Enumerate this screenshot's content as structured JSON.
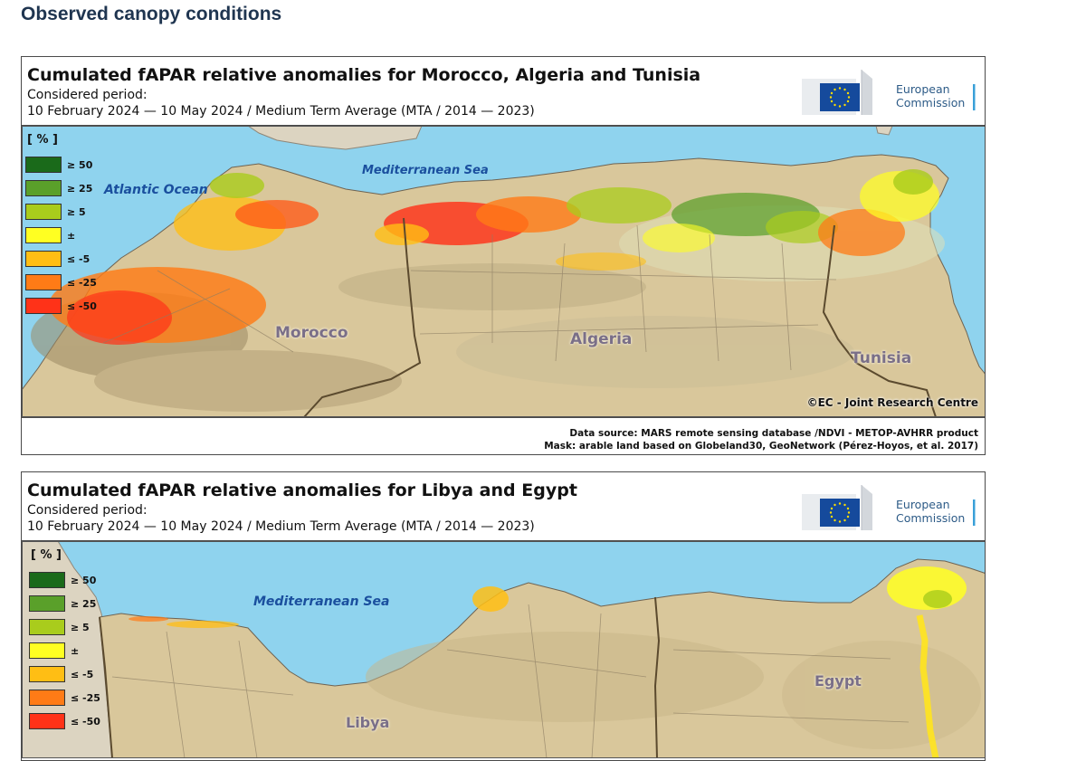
{
  "page": {
    "heading": "Observed canopy conditions"
  },
  "logo": {
    "line1": "European",
    "line2": "Commission"
  },
  "legend": {
    "unit": "[ % ]",
    "classes": [
      {
        "label": "≥ 50",
        "color": "#1a6a1a"
      },
      {
        "label": "≥ 25",
        "color": "#5aa02a"
      },
      {
        "label": "≥ 5",
        "color": "#a9cc1c"
      },
      {
        "label": "±",
        "color": "#ffff22"
      },
      {
        "label": "≤ -5",
        "color": "#ffbe14"
      },
      {
        "label": "≤ -25",
        "color": "#ff7b16"
      },
      {
        "label": "≤ -50",
        "color": "#ff3218"
      }
    ]
  },
  "maps": [
    {
      "title": "Cumulated fAPAR relative anomalies for Morocco, Algeria and Tunisia",
      "period_label": "Considered period:",
      "period": "10 February 2024 — 10 May 2024 / Medium Term Average (MTA / 2014 — 2023)",
      "labels": {
        "atlantic": "Atlantic Ocean",
        "mediterranean": "Mediterranean Sea",
        "morocco": "Morocco",
        "algeria": "Algeria",
        "tunisia": "Tunisia",
        "copyright": "©EC - Joint Research Centre"
      },
      "footer": {
        "line1": "Data source: MARS remote sensing database /NDVI - METOP-AVHRR product",
        "line2": "Mask: arable land based on Globeland30, GeoNetwork (Pérez-Hoyos, et al. 2017)"
      }
    },
    {
      "title": "Cumulated fAPAR relative anomalies for Libya and Egypt",
      "period_label": "Considered period:",
      "period": "10 February 2024 — 10 May 2024 / Medium Term Average (MTA / 2014 — 2023)",
      "labels": {
        "mediterranean": "Mediterranean Sea",
        "libya": "Libya",
        "egypt": "Egypt"
      }
    }
  ],
  "colors": {
    "sea": "#8fd3ee",
    "land": "#d9c79b",
    "border": "#5b4a2e",
    "brand": "#2d5b87"
  }
}
